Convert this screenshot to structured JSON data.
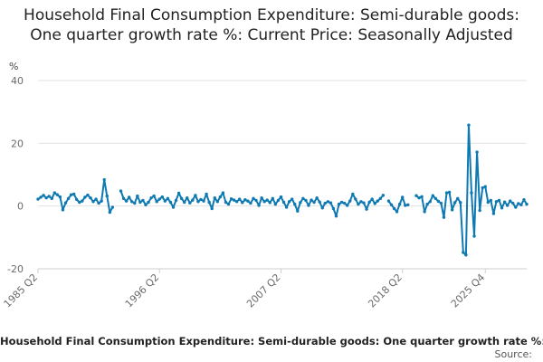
{
  "chart_data": {
    "type": "line",
    "title": "Household Final Consumption Expenditure: Semi-durable goods: One quarter growth rate %: Current Price: Seasonally Adjusted",
    "ylabel": "%",
    "xlabel": "",
    "ylim": [
      -20,
      40
    ],
    "yticks": [
      "40",
      "20",
      "0",
      "-20"
    ],
    "ytick_values": [
      40,
      20,
      0,
      -20
    ],
    "xticks": [
      "1985 Q2",
      "1996 Q2",
      "2007 Q2",
      "2018 Q2",
      "2025 Q4"
    ],
    "start_year": 1985,
    "start_quarter": 2,
    "series": [
      {
        "name": "Household Final Consumption Expenditure: Semi-durable goods: One quarter growth rate %: Current Price: Seasonally Adjusted",
        "color": "#0e79b2",
        "values": [
          2.2,
          2.8,
          3.4,
          2.6,
          3.1,
          2.4,
          4.2,
          3.6,
          2.9,
          -1.2,
          1.0,
          2.4,
          3.6,
          3.8,
          2.1,
          1.2,
          1.6,
          2.8,
          3.5,
          2.6,
          1.4,
          2.2,
          0.9,
          1.6,
          8.4,
          3.2,
          -2.0,
          -0.4,
          null,
          null,
          4.8,
          2.4,
          1.6,
          2.8,
          1.4,
          0.9,
          3.2,
          1.2,
          1.8,
          0.4,
          1.2,
          2.6,
          3.2,
          1.4,
          2.2,
          2.9,
          1.6,
          2.4,
          1.2,
          -0.4,
          1.8,
          4.1,
          2.4,
          1.2,
          2.6,
          1.0,
          1.9,
          3.4,
          1.4,
          2.1,
          1.6,
          3.8,
          1.2,
          -0.8,
          2.6,
          1.4,
          2.9,
          4.2,
          1.2,
          0.6,
          2.3,
          1.9,
          1.4,
          2.2,
          1.1,
          2.0,
          1.6,
          0.9,
          2.4,
          1.8,
          0.2,
          2.6,
          1.4,
          1.9,
          1.1,
          2.4,
          0.6,
          1.8,
          2.9,
          1.2,
          -0.4,
          1.4,
          2.2,
          0.6,
          -1.6,
          1.1,
          2.4,
          1.8,
          0.2,
          1.9,
          1.2,
          2.6,
          1.3,
          -0.6,
          0.9,
          1.4,
          1.0,
          -0.8,
          -3.2,
          0.6,
          1.2,
          0.9,
          0.2,
          1.6,
          3.8,
          2.2,
          0.6,
          1.4,
          1.0,
          -1.0,
          1.2,
          2.2,
          0.8,
          1.6,
          2.4,
          3.4,
          null,
          1.6,
          0.4,
          -0.8,
          -1.8,
          0.6,
          2.8,
          0.2,
          0.4,
          null,
          null,
          3.3,
          2.6,
          3.0,
          -1.8,
          0.6,
          1.4,
          3.3,
          2.4,
          1.5,
          0.9,
          -3.6,
          4.2,
          4.4,
          -1.2,
          1.1,
          2.4,
          1.1,
          -14.8,
          -15.6,
          25.8,
          4.2,
          -9.6,
          17.2,
          -1.4,
          5.8,
          6.2,
          1.2,
          1.8,
          -2.4,
          1.4,
          1.8,
          -0.6,
          1.3,
          0.2,
          1.6,
          0.9,
          -0.4,
          0.8,
          0.4,
          2.0,
          0.6
        ]
      }
    ]
  },
  "footer": {
    "legend_label": "Household Final Consumption Expenditure: Semi-durable goods: One quarter growth rate %: Current Price: Seasonally Adjusted",
    "source_label": "Source: "
  }
}
